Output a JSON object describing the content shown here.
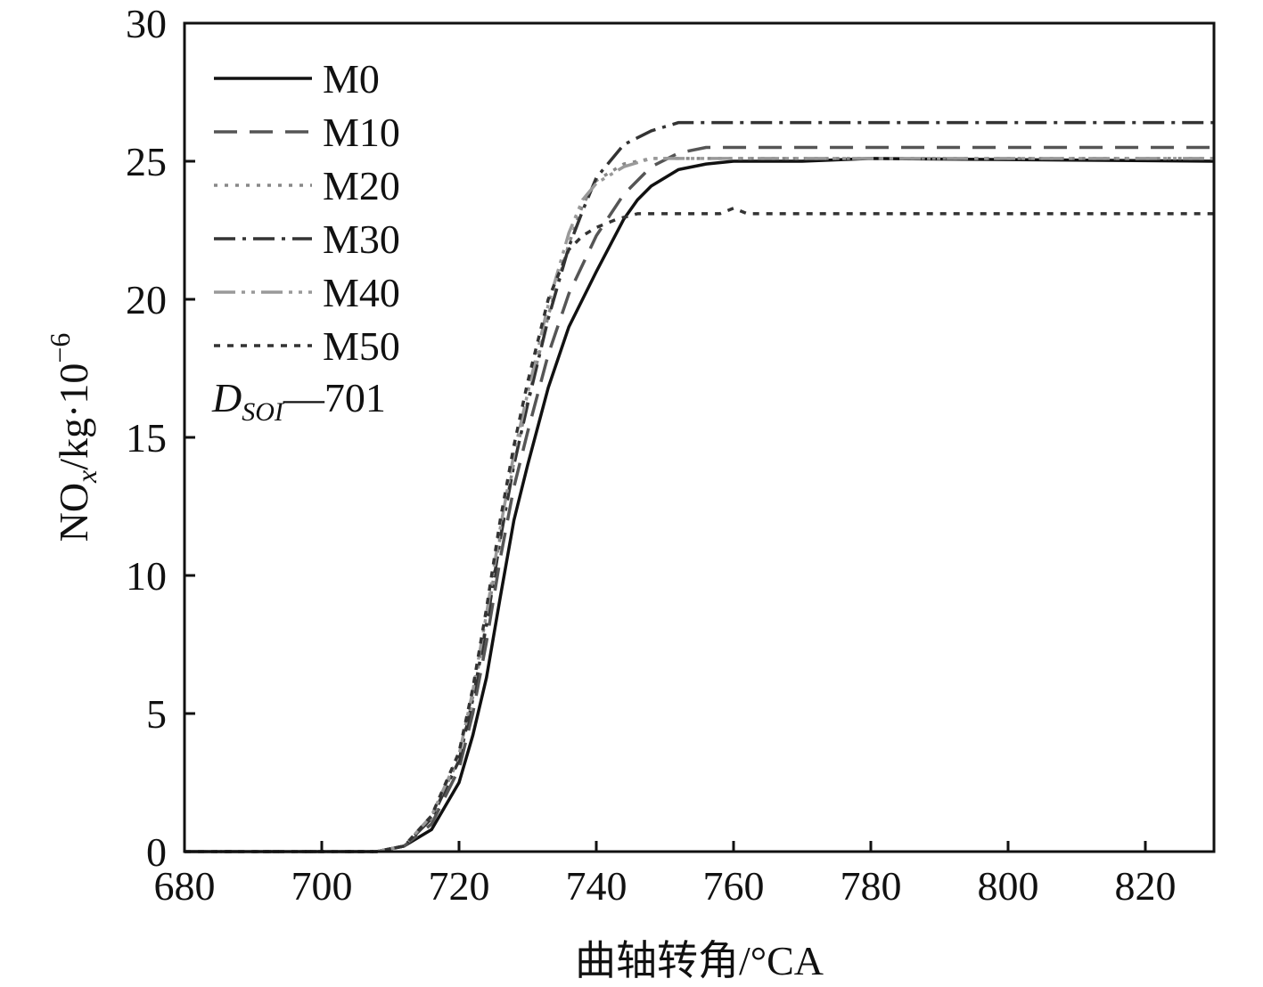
{
  "chart_data": {
    "type": "line",
    "title": "",
    "xlabel": "曲轴转角/°CA",
    "ylabel": {
      "prefix": "NO",
      "subscript": "x",
      "middle": "/kg·10",
      "superscript": "−6"
    },
    "xlim": [
      680,
      830
    ],
    "ylim": [
      0,
      30
    ],
    "xticks": [
      680,
      700,
      720,
      740,
      760,
      780,
      800,
      820
    ],
    "yticks": [
      0,
      5,
      10,
      15,
      20,
      25,
      30
    ],
    "grid": false,
    "legend_position": "top-left",
    "annotation": {
      "main": "D",
      "subscript": "SOI",
      "suffix": "—701"
    },
    "series": [
      {
        "name": "M0",
        "color": "#111111",
        "dash": "",
        "x": [
          680,
          708,
          712,
          716,
          720,
          722,
          724,
          726,
          728,
          730,
          733,
          736,
          740,
          744,
          746,
          748,
          752,
          756,
          760,
          770,
          780,
          830
        ],
        "y": [
          0,
          0,
          0.2,
          0.8,
          2.5,
          4.2,
          6.3,
          9.2,
          12.0,
          14.0,
          16.8,
          19.0,
          21.0,
          22.9,
          23.6,
          24.1,
          24.7,
          24.9,
          25.0,
          25.0,
          25.1,
          25.0
        ]
      },
      {
        "name": "M10",
        "color": "#555555",
        "dash": "26,14",
        "x": [
          680,
          708,
          712,
          716,
          720,
          722,
          724,
          726,
          728,
          730,
          733,
          736,
          740,
          744,
          748,
          752,
          756,
          760,
          830
        ],
        "y": [
          0,
          0,
          0.2,
          1.0,
          3.0,
          5.0,
          7.6,
          10.6,
          13.2,
          15.2,
          18.0,
          20.2,
          22.3,
          23.8,
          24.8,
          25.3,
          25.5,
          25.5,
          25.5
        ]
      },
      {
        "name": "M20",
        "color": "#888888",
        "dash": "4,8",
        "x": [
          680,
          708,
          712,
          716,
          720,
          722,
          724,
          726,
          728,
          730,
          733,
          736,
          738,
          740,
          744,
          748,
          752,
          756,
          830
        ],
        "y": [
          0,
          0,
          0.2,
          1.2,
          3.4,
          5.6,
          8.3,
          11.4,
          14.1,
          16.3,
          19.4,
          22.0,
          23.4,
          24.3,
          24.9,
          25.1,
          25.1,
          25.1,
          25.1
        ]
      },
      {
        "name": "M30",
        "color": "#333333",
        "dash": "24,8,4,8",
        "x": [
          680,
          708,
          712,
          716,
          720,
          722,
          724,
          726,
          728,
          730,
          733,
          736,
          738,
          740,
          744,
          748,
          752,
          756,
          830
        ],
        "y": [
          0,
          0,
          0.2,
          1.2,
          3.3,
          5.5,
          8.2,
          11.3,
          14.0,
          16.2,
          19.3,
          21.9,
          23.2,
          24.4,
          25.6,
          26.1,
          26.4,
          26.4,
          26.4
        ]
      },
      {
        "name": "M40",
        "color": "#999999",
        "dash": "24,7,4,7,4,7",
        "x": [
          680,
          708,
          712,
          716,
          720,
          722,
          724,
          726,
          728,
          730,
          733,
          736,
          738,
          740,
          744,
          748,
          752,
          756,
          830
        ],
        "y": [
          0,
          0,
          0.2,
          1.3,
          3.5,
          5.8,
          8.6,
          11.7,
          14.4,
          16.6,
          19.8,
          22.4,
          23.6,
          24.2,
          24.8,
          25.1,
          25.1,
          25.1,
          25.1
        ]
      },
      {
        "name": "M50",
        "color": "#333333",
        "dash": "7,8",
        "x": [
          680,
          708,
          712,
          716,
          720,
          722,
          724,
          726,
          728,
          730,
          733,
          736,
          738,
          740,
          743,
          746,
          750,
          758,
          760,
          762,
          770,
          830
        ],
        "y": [
          0,
          0,
          0.2,
          1.3,
          3.6,
          5.9,
          8.8,
          12.0,
          14.7,
          17.0,
          20.0,
          21.8,
          22.3,
          22.6,
          22.9,
          23.1,
          23.1,
          23.1,
          23.3,
          23.1,
          23.1,
          23.1
        ]
      }
    ]
  }
}
